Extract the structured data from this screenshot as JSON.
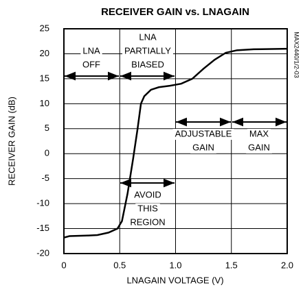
{
  "chart_data": {
    "type": "line",
    "title": "RECEIVER GAIN vs. LNAGAIN",
    "xlabel": "LNAGAIN VOLTAGE (V)",
    "ylabel": "RECEIVER GAIN (dB)",
    "note": "MAX2440/1/2-03",
    "x": [
      0,
      0.05,
      0.2,
      0.3,
      0.4,
      0.48,
      0.52,
      0.57,
      0.62,
      0.66,
      0.69,
      0.72,
      0.78,
      0.85,
      0.95,
      1.05,
      1.15,
      1.25,
      1.35,
      1.45,
      1.55,
      1.7,
      2.0
    ],
    "values": [
      -16.8,
      -16.5,
      -16.4,
      -16.3,
      -15.8,
      -15,
      -13.5,
      -8,
      -1,
      5,
      10,
      11.5,
      12.8,
      13.3,
      13.6,
      14,
      15,
      17,
      18.8,
      20.2,
      20.7,
      20.9,
      21
    ],
    "color": "#000000",
    "xlim": [
      0,
      2.0
    ],
    "xticks": [
      0,
      0.5,
      {
        "value": 1,
        "label": "1.0"
      },
      1.5,
      {
        "value": 2,
        "label": "2.0"
      }
    ],
    "ylim": [
      -20,
      25
    ],
    "yticks": [
      -20,
      -15,
      -10,
      -5,
      0,
      5,
      10,
      15,
      20,
      25
    ],
    "grid": true,
    "annotations": [
      {
        "lines": [
          "LNA",
          "OFF"
        ]
      },
      {
        "lines": [
          "LNA",
          "PARTIALLY",
          "BIASED"
        ]
      },
      {
        "lines": [
          "ADJUSTABLE",
          "GAIN"
        ]
      },
      {
        "lines": [
          "MAX",
          "GAIN"
        ]
      },
      {
        "lines": [
          "AVOID",
          "THIS",
          "REGION"
        ]
      }
    ]
  }
}
